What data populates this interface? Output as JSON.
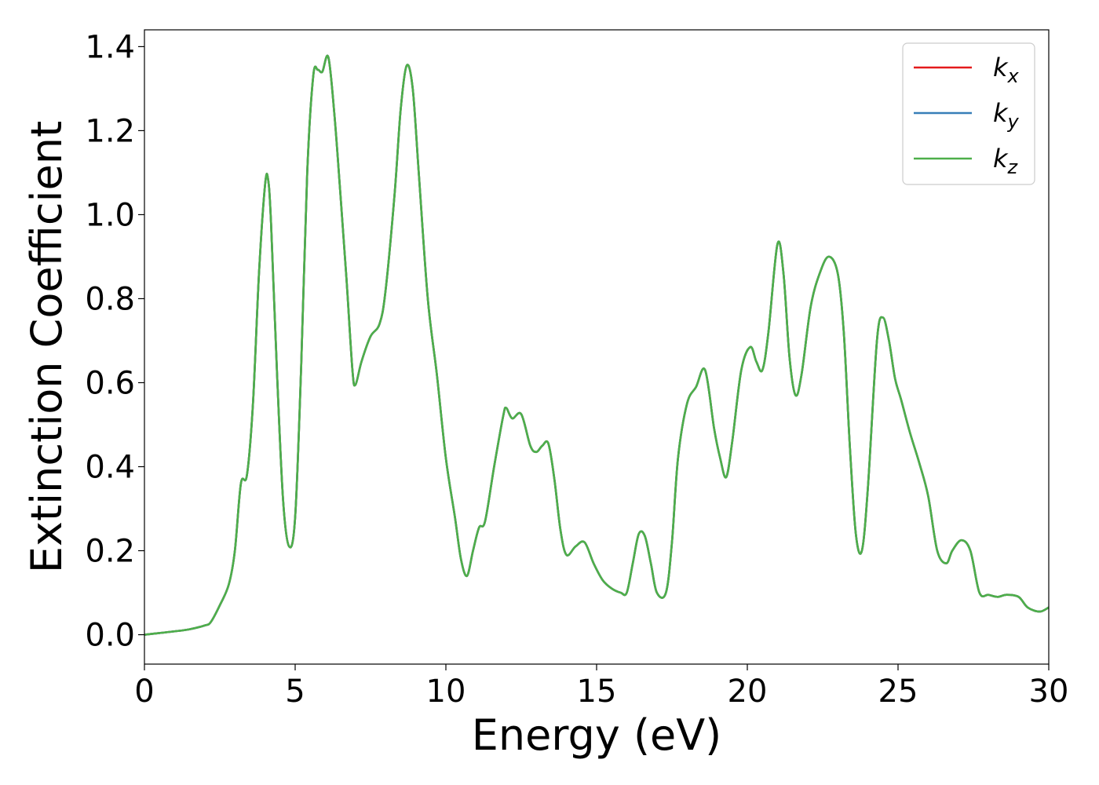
{
  "chart_data": {
    "type": "line",
    "title": "",
    "xlabel": "Energy (eV)",
    "ylabel": "Extinction Coefficient",
    "xlim": [
      0,
      30
    ],
    "ylim": [
      -0.07,
      1.44
    ],
    "xticks": [
      0,
      5,
      10,
      15,
      20,
      25,
      30
    ],
    "xtick_labels": [
      "0",
      "5",
      "10",
      "15",
      "20",
      "25",
      "30"
    ],
    "yticks": [
      0.0,
      0.2,
      0.4,
      0.6,
      0.8,
      1.0,
      1.2,
      1.4
    ],
    "ytick_labels": [
      "0.0",
      "0.2",
      "0.4",
      "0.6",
      "0.8",
      "1.0",
      "1.2",
      "1.4"
    ],
    "grid": false,
    "legend": {
      "position": "top-right",
      "entries": [
        {
          "main": "k",
          "sub": "x",
          "color": "#e41a1c"
        },
        {
          "main": "k",
          "sub": "y",
          "color": "#377eb8"
        },
        {
          "main": "k",
          "sub": "z",
          "color": "#4daf4a"
        }
      ]
    },
    "x": [
      0,
      0.5,
      1,
      1.5,
      2,
      2.2,
      2.5,
      2.8,
      3.0,
      3.2,
      3.4,
      3.6,
      3.8,
      4.0,
      4.1,
      4.2,
      4.4,
      4.6,
      4.8,
      5.0,
      5.2,
      5.4,
      5.6,
      5.75,
      5.9,
      6.1,
      6.3,
      6.5,
      6.7,
      6.9,
      7.0,
      7.2,
      7.5,
      7.8,
      8.0,
      8.3,
      8.5,
      8.7,
      8.9,
      9.1,
      9.4,
      9.7,
      10.0,
      10.3,
      10.5,
      10.7,
      10.9,
      11.1,
      11.3,
      11.6,
      11.9,
      12.0,
      12.2,
      12.5,
      12.8,
      13.0,
      13.2,
      13.4,
      13.6,
      13.8,
      14.0,
      14.3,
      14.6,
      14.9,
      15.2,
      15.5,
      15.8,
      16.0,
      16.2,
      16.4,
      16.6,
      16.8,
      17.0,
      17.3,
      17.5,
      17.7,
      18.0,
      18.3,
      18.6,
      18.9,
      19.1,
      19.3,
      19.5,
      19.8,
      20.1,
      20.3,
      20.5,
      20.7,
      21.0,
      21.2,
      21.4,
      21.6,
      21.8,
      22.1,
      22.4,
      22.7,
      23.0,
      23.2,
      23.4,
      23.6,
      23.8,
      24.0,
      24.3,
      24.5,
      24.7,
      24.9,
      25.1,
      25.4,
      25.7,
      26.0,
      26.3,
      26.6,
      26.8,
      27.1,
      27.4,
      27.7,
      28.0,
      28.3,
      28.6,
      29.0,
      29.3,
      29.7,
      30.0
    ],
    "series": [
      {
        "name": "k_x",
        "color": "#e41a1c",
        "values": [
          0.0,
          0.004,
          0.008,
          0.013,
          0.022,
          0.03,
          0.07,
          0.12,
          0.2,
          0.36,
          0.38,
          0.55,
          0.86,
          1.07,
          1.085,
          0.98,
          0.62,
          0.32,
          0.21,
          0.28,
          0.64,
          1.1,
          1.33,
          1.345,
          1.34,
          1.375,
          1.24,
          1.05,
          0.85,
          0.63,
          0.595,
          0.65,
          0.71,
          0.74,
          0.82,
          1.05,
          1.25,
          1.355,
          1.3,
          1.1,
          0.8,
          0.62,
          0.42,
          0.28,
          0.18,
          0.14,
          0.2,
          0.255,
          0.27,
          0.4,
          0.52,
          0.54,
          0.515,
          0.525,
          0.45,
          0.435,
          0.45,
          0.455,
          0.37,
          0.25,
          0.19,
          0.21,
          0.22,
          0.17,
          0.13,
          0.11,
          0.1,
          0.1,
          0.17,
          0.24,
          0.235,
          0.17,
          0.1,
          0.1,
          0.22,
          0.42,
          0.55,
          0.59,
          0.63,
          0.49,
          0.42,
          0.375,
          0.46,
          0.63,
          0.685,
          0.65,
          0.63,
          0.72,
          0.93,
          0.86,
          0.66,
          0.57,
          0.62,
          0.78,
          0.86,
          0.9,
          0.86,
          0.72,
          0.45,
          0.24,
          0.2,
          0.35,
          0.7,
          0.755,
          0.7,
          0.61,
          0.56,
          0.48,
          0.41,
          0.33,
          0.2,
          0.17,
          0.2,
          0.225,
          0.2,
          0.1,
          0.095,
          0.09,
          0.095,
          0.09,
          0.065,
          0.055,
          0.065
        ]
      },
      {
        "name": "k_y",
        "color": "#377eb8",
        "values": [
          0.0,
          0.004,
          0.008,
          0.013,
          0.022,
          0.03,
          0.07,
          0.12,
          0.2,
          0.36,
          0.38,
          0.55,
          0.86,
          1.07,
          1.085,
          0.98,
          0.62,
          0.32,
          0.21,
          0.28,
          0.64,
          1.1,
          1.33,
          1.345,
          1.34,
          1.375,
          1.24,
          1.05,
          0.85,
          0.63,
          0.595,
          0.65,
          0.71,
          0.74,
          0.82,
          1.05,
          1.25,
          1.355,
          1.3,
          1.1,
          0.8,
          0.62,
          0.42,
          0.28,
          0.18,
          0.14,
          0.2,
          0.255,
          0.27,
          0.4,
          0.52,
          0.54,
          0.515,
          0.525,
          0.45,
          0.435,
          0.45,
          0.455,
          0.37,
          0.25,
          0.19,
          0.21,
          0.22,
          0.17,
          0.13,
          0.11,
          0.1,
          0.1,
          0.17,
          0.24,
          0.235,
          0.17,
          0.1,
          0.1,
          0.22,
          0.42,
          0.55,
          0.59,
          0.63,
          0.49,
          0.42,
          0.375,
          0.46,
          0.63,
          0.685,
          0.65,
          0.63,
          0.72,
          0.93,
          0.86,
          0.66,
          0.57,
          0.62,
          0.78,
          0.86,
          0.9,
          0.86,
          0.72,
          0.45,
          0.24,
          0.2,
          0.35,
          0.7,
          0.755,
          0.7,
          0.61,
          0.56,
          0.48,
          0.41,
          0.33,
          0.2,
          0.17,
          0.2,
          0.225,
          0.2,
          0.1,
          0.095,
          0.09,
          0.095,
          0.09,
          0.065,
          0.055,
          0.065
        ]
      },
      {
        "name": "k_z",
        "color": "#4daf4a",
        "values": [
          0.0,
          0.004,
          0.008,
          0.013,
          0.022,
          0.03,
          0.07,
          0.12,
          0.2,
          0.36,
          0.38,
          0.55,
          0.86,
          1.07,
          1.085,
          0.98,
          0.62,
          0.32,
          0.21,
          0.28,
          0.64,
          1.1,
          1.33,
          1.345,
          1.34,
          1.375,
          1.24,
          1.05,
          0.85,
          0.63,
          0.595,
          0.65,
          0.71,
          0.74,
          0.82,
          1.05,
          1.25,
          1.355,
          1.3,
          1.1,
          0.8,
          0.62,
          0.42,
          0.28,
          0.18,
          0.14,
          0.2,
          0.255,
          0.27,
          0.4,
          0.52,
          0.54,
          0.515,
          0.525,
          0.45,
          0.435,
          0.45,
          0.455,
          0.37,
          0.25,
          0.19,
          0.21,
          0.22,
          0.17,
          0.13,
          0.11,
          0.1,
          0.1,
          0.17,
          0.24,
          0.235,
          0.17,
          0.1,
          0.1,
          0.22,
          0.42,
          0.55,
          0.59,
          0.63,
          0.49,
          0.42,
          0.375,
          0.46,
          0.63,
          0.685,
          0.65,
          0.63,
          0.72,
          0.93,
          0.86,
          0.66,
          0.57,
          0.62,
          0.78,
          0.86,
          0.9,
          0.86,
          0.72,
          0.45,
          0.24,
          0.2,
          0.35,
          0.7,
          0.755,
          0.7,
          0.61,
          0.56,
          0.48,
          0.41,
          0.33,
          0.2,
          0.17,
          0.2,
          0.225,
          0.2,
          0.1,
          0.095,
          0.09,
          0.095,
          0.09,
          0.065,
          0.055,
          0.065
        ]
      }
    ]
  }
}
